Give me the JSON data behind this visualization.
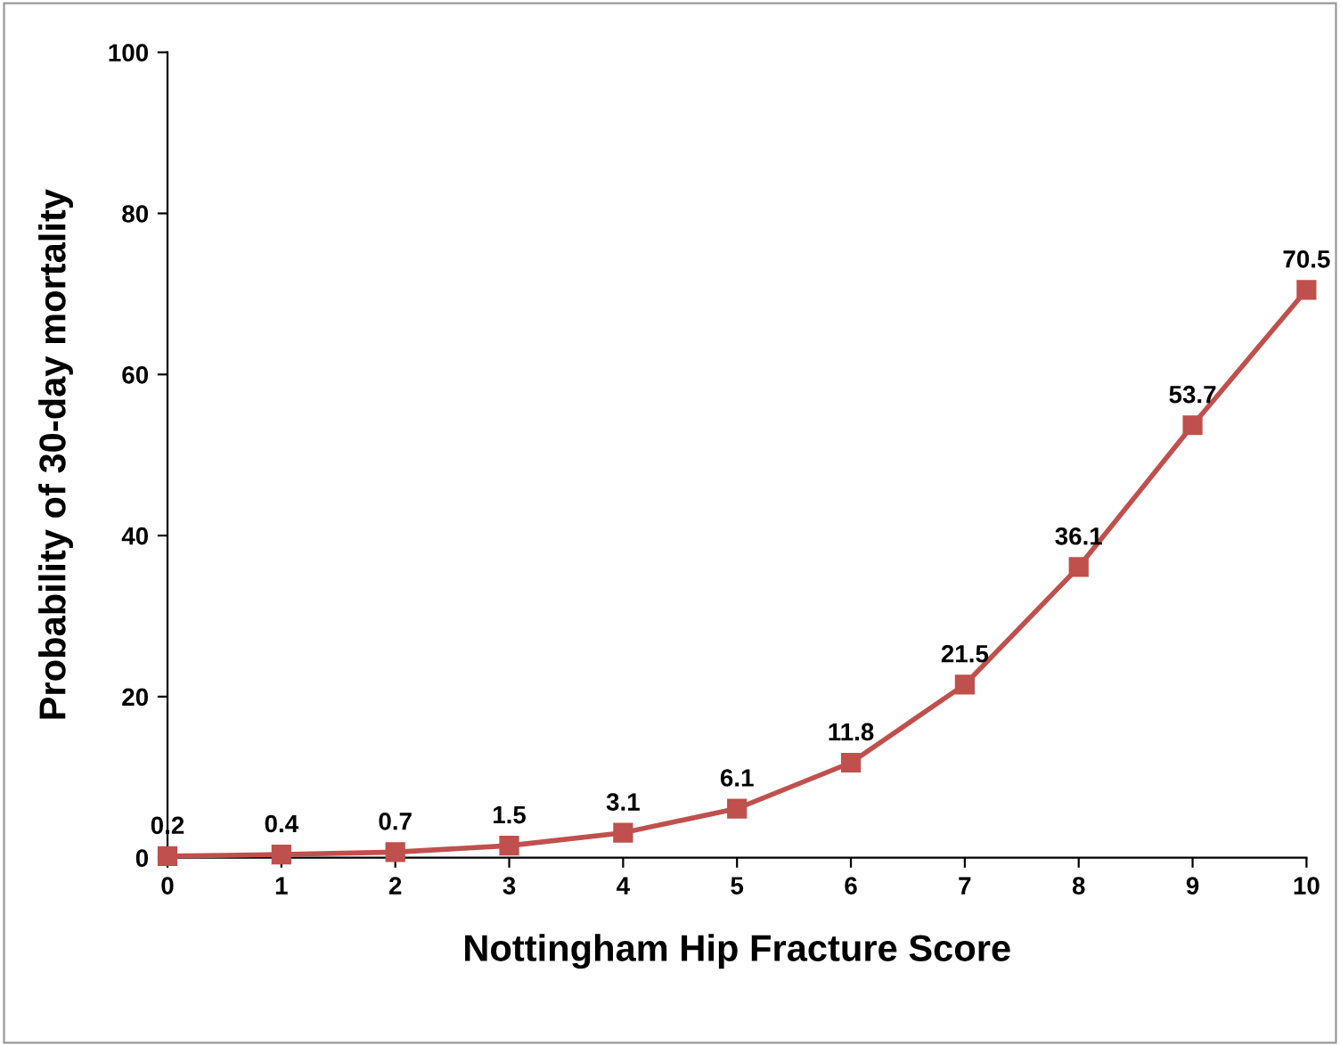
{
  "chart_data": {
    "type": "line",
    "xlabel": "Nottingham Hip Fracture Score",
    "ylabel": "Probability of 30-day mortality",
    "x": [
      0,
      1,
      2,
      3,
      4,
      5,
      6,
      7,
      8,
      9,
      10
    ],
    "series": [
      {
        "color": "#c0504d",
        "values": [
          0.2,
          0.4,
          0.7,
          1.5,
          3.1,
          6.1,
          11.8,
          21.5,
          36.1,
          53.7,
          70.5
        ]
      }
    ],
    "xlim": [
      0,
      10
    ],
    "ylim": [
      0,
      100
    ],
    "xticks": [
      0,
      1,
      2,
      3,
      4,
      5,
      6,
      7,
      8,
      9,
      10
    ],
    "yticks": [
      0,
      20,
      40,
      60,
      80,
      100
    ],
    "data_labels": true,
    "marker": "square",
    "line_style": "solid",
    "grid": false,
    "legend": false
  }
}
